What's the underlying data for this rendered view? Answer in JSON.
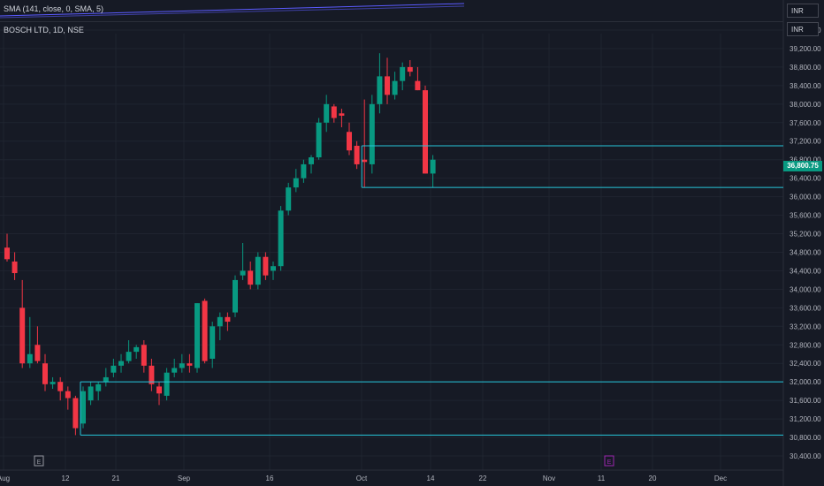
{
  "indicator": {
    "label": "SMA (141, close, 0, SMA, 5)"
  },
  "symbol": {
    "label": "BOSCH LTD, 1D, NSE"
  },
  "currency_top": "INR",
  "currency_axis": "INR",
  "current_price": "36,800.75",
  "colors": {
    "background": "#161a25",
    "grid": "#1f2430",
    "up": "#089981",
    "down": "#f23645",
    "level_line": "#26c6da",
    "sma_line": "#5b5bff",
    "earnings_marker_past": "#9598a1",
    "earnings_marker_future": "#9c27b0"
  },
  "chart_data": {
    "type": "candlestick",
    "ylim": [
      30200,
      39800
    ],
    "y_ticks": [
      "39,600.00",
      "39,200.00",
      "38,800.00",
      "38,400.00",
      "38,000.00",
      "37,600.00",
      "37,200.00",
      "36,800.00",
      "36,400.00",
      "36,000.00",
      "35,600.00",
      "35,200.00",
      "34,800.00",
      "34,400.00",
      "34,000.00",
      "33,600.00",
      "33,200.00",
      "32,800.00",
      "32,400.00",
      "32,000.00",
      "31,600.00",
      "31,200.00",
      "30,800.00",
      "30,400.00"
    ],
    "x_ticks": [
      "Aug",
      "12",
      "21",
      "Sep",
      "16",
      "Oct",
      "14",
      "22",
      "Nov",
      "11",
      "20",
      "Dec"
    ],
    "earnings_markers": [
      {
        "label": "E",
        "date": "Aug 8"
      },
      {
        "label": "E",
        "date": "Nov 10"
      }
    ],
    "candles": [
      {
        "o": 34900,
        "h": 35200,
        "l": 34600,
        "c": 34650
      },
      {
        "o": 34600,
        "h": 34800,
        "l": 34200,
        "c": 34350
      },
      {
        "o": 33600,
        "h": 34200,
        "l": 32300,
        "c": 32400
      },
      {
        "o": 32400,
        "h": 33400,
        "l": 32300,
        "c": 32600
      },
      {
        "o": 32800,
        "h": 33200,
        "l": 32400,
        "c": 32450
      },
      {
        "o": 32400,
        "h": 32600,
        "l": 31800,
        "c": 31950
      },
      {
        "o": 31950,
        "h": 32100,
        "l": 31850,
        "c": 32000
      },
      {
        "o": 32000,
        "h": 32100,
        "l": 31600,
        "c": 31800
      },
      {
        "o": 31800,
        "h": 31900,
        "l": 31400,
        "c": 31650
      },
      {
        "o": 31650,
        "h": 31700,
        "l": 30850,
        "c": 31000
      },
      {
        "o": 31100,
        "h": 31900,
        "l": 31000,
        "c": 31800
      },
      {
        "o": 31600,
        "h": 32000,
        "l": 31500,
        "c": 31900
      },
      {
        "o": 31800,
        "h": 32000,
        "l": 31600,
        "c": 31950
      },
      {
        "o": 32000,
        "h": 32300,
        "l": 31900,
        "c": 32100
      },
      {
        "o": 32200,
        "h": 32500,
        "l": 32100,
        "c": 32350
      },
      {
        "o": 32350,
        "h": 32600,
        "l": 32200,
        "c": 32450
      },
      {
        "o": 32450,
        "h": 32900,
        "l": 32400,
        "c": 32650
      },
      {
        "o": 32650,
        "h": 32800,
        "l": 32500,
        "c": 32750
      },
      {
        "o": 32800,
        "h": 32900,
        "l": 32200,
        "c": 32350
      },
      {
        "o": 32350,
        "h": 32500,
        "l": 31800,
        "c": 31950
      },
      {
        "o": 31900,
        "h": 32000,
        "l": 31500,
        "c": 31750
      },
      {
        "o": 31700,
        "h": 32300,
        "l": 31600,
        "c": 32200
      },
      {
        "o": 32200,
        "h": 32500,
        "l": 32100,
        "c": 32300
      },
      {
        "o": 32300,
        "h": 32600,
        "l": 32200,
        "c": 32400
      },
      {
        "o": 32400,
        "h": 32600,
        "l": 32200,
        "c": 32350
      },
      {
        "o": 32300,
        "h": 33700,
        "l": 32200,
        "c": 33700
      },
      {
        "o": 33750,
        "h": 33800,
        "l": 32400,
        "c": 32450
      },
      {
        "o": 32500,
        "h": 33300,
        "l": 32300,
        "c": 33200
      },
      {
        "o": 33200,
        "h": 33500,
        "l": 32900,
        "c": 33400
      },
      {
        "o": 33400,
        "h": 33500,
        "l": 33100,
        "c": 33300
      },
      {
        "o": 33500,
        "h": 34300,
        "l": 33400,
        "c": 34200
      },
      {
        "o": 34300,
        "h": 35000,
        "l": 34200,
        "c": 34400
      },
      {
        "o": 34400,
        "h": 34600,
        "l": 34000,
        "c": 34100
      },
      {
        "o": 34100,
        "h": 34800,
        "l": 34000,
        "c": 34700
      },
      {
        "o": 34700,
        "h": 34800,
        "l": 34200,
        "c": 34300
      },
      {
        "o": 34400,
        "h": 34600,
        "l": 34200,
        "c": 34500
      },
      {
        "o": 34500,
        "h": 35800,
        "l": 34400,
        "c": 35700
      },
      {
        "o": 35700,
        "h": 36300,
        "l": 35600,
        "c": 36200
      },
      {
        "o": 36200,
        "h": 36600,
        "l": 36100,
        "c": 36400
      },
      {
        "o": 36400,
        "h": 36800,
        "l": 36300,
        "c": 36700
      },
      {
        "o": 36700,
        "h": 36900,
        "l": 36500,
        "c": 36850
      },
      {
        "o": 36850,
        "h": 37700,
        "l": 36800,
        "c": 37600
      },
      {
        "o": 37600,
        "h": 38200,
        "l": 37400,
        "c": 38000
      },
      {
        "o": 37950,
        "h": 38000,
        "l": 37600,
        "c": 37700
      },
      {
        "o": 37800,
        "h": 37900,
        "l": 37500,
        "c": 37750
      },
      {
        "o": 37400,
        "h": 37600,
        "l": 36900,
        "c": 37000
      },
      {
        "o": 37100,
        "h": 37200,
        "l": 36600,
        "c": 36700
      },
      {
        "o": 36800,
        "h": 38100,
        "l": 36200,
        "c": 36750
      },
      {
        "o": 36700,
        "h": 38200,
        "l": 36500,
        "c": 38000
      },
      {
        "o": 38000,
        "h": 39100,
        "l": 37800,
        "c": 38600
      },
      {
        "o": 38600,
        "h": 39000,
        "l": 38000,
        "c": 38200
      },
      {
        "o": 38200,
        "h": 38700,
        "l": 38100,
        "c": 38500
      },
      {
        "o": 38500,
        "h": 38900,
        "l": 38300,
        "c": 38800
      },
      {
        "o": 38800,
        "h": 38950,
        "l": 38600,
        "c": 38700
      },
      {
        "o": 38500,
        "h": 38800,
        "l": 38300,
        "c": 38300
      },
      {
        "o": 38300,
        "h": 38400,
        "l": 36500,
        "c": 36500
      },
      {
        "o": 36500,
        "h": 36900,
        "l": 36200,
        "c": 36800
      }
    ],
    "level_boxes": [
      {
        "x_from_candle": 47,
        "y_top": 37100,
        "y_bottom": 36200
      },
      {
        "x_from_candle": 10,
        "y_top": 32000,
        "y_bottom": 30850
      }
    ],
    "sma_line_label": "SMA (141, close, 0, SMA, 5)"
  }
}
